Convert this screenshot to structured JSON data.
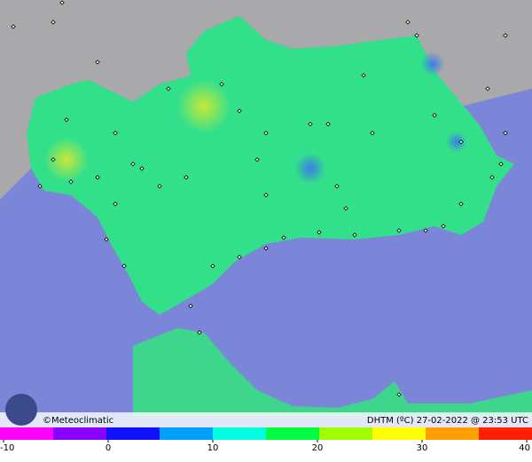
{
  "map": {
    "credit": "©Meteoclimatic",
    "caption": "DHTM (ºC)  27-02-2022 @ 23:53 UTC",
    "colorbar": {
      "range": [
        -10,
        40
      ],
      "ticks": [
        -10,
        0,
        10,
        20,
        30,
        40
      ],
      "colors": [
        "#ff00ff",
        "#8a00ff",
        "#1010ff",
        "#00a0ff",
        "#00ffe0",
        "#00ff40",
        "#a0ff00",
        "#ffff00",
        "#ffa000",
        "#ff2000"
      ]
    }
  }
}
